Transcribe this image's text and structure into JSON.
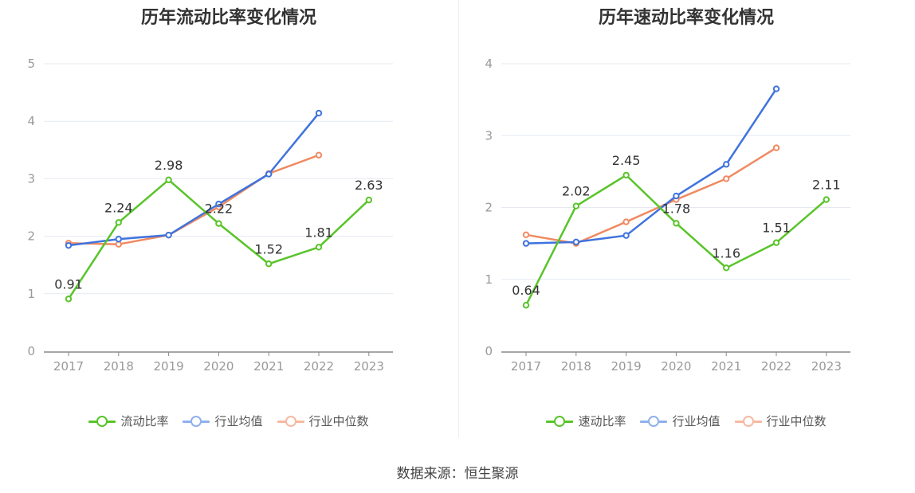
{
  "source": "数据来源：恒生聚源",
  "colors": {
    "primary": "#59c42a",
    "avg": "#3f73de",
    "median": "#f08a62",
    "grid": "#e6e9f2",
    "axis": "#999999"
  },
  "legend_icons": [
    "circle-line-icon",
    "circle-line-icon",
    "circle-line-icon"
  ],
  "chart_data": [
    {
      "type": "line",
      "title": "历年流动比率变化情况",
      "categories": [
        "2017",
        "2018",
        "2019",
        "2020",
        "2021",
        "2022",
        "2023"
      ],
      "y_ticks": [
        "0",
        "1",
        "2",
        "3",
        "4",
        "5"
      ],
      "ylim": [
        0,
        5
      ],
      "grid": true,
      "legend_position": "bottom",
      "series": [
        {
          "name": "流动比率",
          "key": "primary",
          "values": [
            0.91,
            2.24,
            2.98,
            2.22,
            1.52,
            1.81,
            2.63
          ],
          "labels": [
            "0.91",
            "2.24",
            "2.98",
            "2.22",
            "1.52",
            "1.81",
            "2.63"
          ]
        },
        {
          "name": "行业均值",
          "key": "avg",
          "values": [
            1.84,
            1.95,
            2.02,
            2.56,
            3.08,
            4.14,
            null
          ]
        },
        {
          "name": "行业中位数",
          "key": "median",
          "values": [
            1.88,
            1.86,
            2.02,
            2.51,
            3.09,
            3.41,
            null
          ]
        }
      ]
    },
    {
      "type": "line",
      "title": "历年速动比率变化情况",
      "categories": [
        "2017",
        "2018",
        "2019",
        "2020",
        "2021",
        "2022",
        "2023"
      ],
      "y_ticks": [
        "0",
        "1",
        "2",
        "3",
        "4"
      ],
      "ylim": [
        0,
        4
      ],
      "grid": true,
      "legend_position": "bottom",
      "series": [
        {
          "name": "速动比率",
          "key": "primary",
          "values": [
            0.64,
            2.02,
            2.45,
            1.78,
            1.16,
            1.51,
            2.11
          ],
          "labels": [
            "0.64",
            "2.02",
            "2.45",
            "1.78",
            "1.16",
            "1.51",
            "2.11"
          ]
        },
        {
          "name": "行业均值",
          "key": "avg",
          "values": [
            1.5,
            1.52,
            1.61,
            2.16,
            2.6,
            3.65,
            null
          ]
        },
        {
          "name": "行业中位数",
          "key": "median",
          "values": [
            1.62,
            1.5,
            1.8,
            2.11,
            2.4,
            2.83,
            null
          ]
        }
      ]
    }
  ]
}
